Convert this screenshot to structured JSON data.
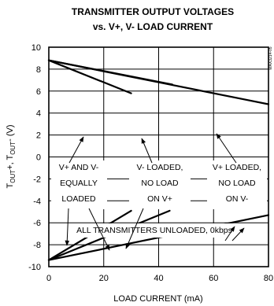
{
  "chart_data": {
    "type": "line",
    "title_line1": "TRANSMITTER OUTPUT VOLTAGES",
    "title_line2": "vs. V+, V- LOAD CURRENT",
    "xlabel": "LOAD CURRENT (mA)",
    "ylabel_parts": [
      "T",
      "OUT",
      "+, T",
      "OUT",
      "- (V)"
    ],
    "xlim": [
      0,
      80
    ],
    "ylim": [
      -10,
      10
    ],
    "x_ticks": [
      "0",
      "20",
      "40",
      "60",
      "80"
    ],
    "y_ticks": [
      "10",
      "8",
      "6",
      "4",
      "2",
      "0",
      "-2",
      "-4",
      "-6",
      "-8",
      "-10"
    ],
    "grid": true,
    "watermark": "MAX3214-05",
    "series": [
      {
        "points": [
          [
            0,
            8.8
          ],
          [
            30,
            5.8
          ]
        ]
      },
      {
        "points": [
          [
            0,
            8.8
          ],
          [
            45,
            6.6
          ]
        ]
      },
      {
        "points": [
          [
            0,
            8.8
          ],
          [
            80,
            4.8
          ]
        ]
      },
      {
        "points": [
          [
            0,
            -9.4
          ],
          [
            30,
            -4.9
          ]
        ]
      },
      {
        "points": [
          [
            0,
            -9.4
          ],
          [
            44,
            -4.9
          ]
        ]
      },
      {
        "points": [
          [
            0,
            -9.4
          ],
          [
            80,
            -5.3
          ]
        ]
      }
    ],
    "annotations": [
      {
        "lines": [
          "V+ AND V-",
          "EQUALLY",
          "LOADED"
        ]
      },
      {
        "lines": [
          "V- LOADED,",
          "NO LOAD",
          "ON V+"
        ]
      },
      {
        "lines": [
          "V+ LOADED,",
          "NO LOAD",
          "ON V-"
        ]
      },
      {
        "lines": [
          "ALL TRANSMITTERS UNLOADED, 0kbps"
        ]
      }
    ]
  }
}
